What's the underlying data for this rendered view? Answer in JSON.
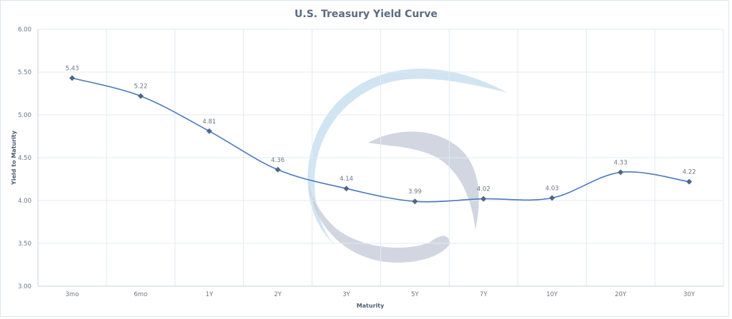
{
  "chart_data": {
    "type": "line",
    "title": "U.S. Treasury Yield Curve",
    "xlabel": "Maturity",
    "ylabel": "Yield to Maturity",
    "categories": [
      "3mo",
      "6mo",
      "1Y",
      "2Y",
      "3Y",
      "5Y",
      "7Y",
      "10Y",
      "20Y",
      "30Y"
    ],
    "series": [
      {
        "name": "Yield",
        "values": [
          5.43,
          5.22,
          4.81,
          4.36,
          4.14,
          3.99,
          4.02,
          4.03,
          4.33,
          4.22
        ],
        "labels": [
          "5.43",
          "5.22",
          "4.81",
          "4.36",
          "4.14",
          "3.99",
          "4.02",
          "4.03",
          "4.33",
          "4.22"
        ],
        "color": "#4a78c0",
        "marker_color": "#4f6587",
        "smooth": true
      }
    ],
    "ylim": [
      3.0,
      6.0
    ],
    "yticks": [
      "3.00",
      "3.50",
      "4.00",
      "4.50",
      "5.00",
      "5.50",
      "6.00"
    ],
    "grid": true,
    "legend": "none"
  },
  "colors": {
    "grid": "#e3e8f0",
    "watermark_light": "#c9dff0",
    "watermark_dark": "#c5ccd8"
  }
}
